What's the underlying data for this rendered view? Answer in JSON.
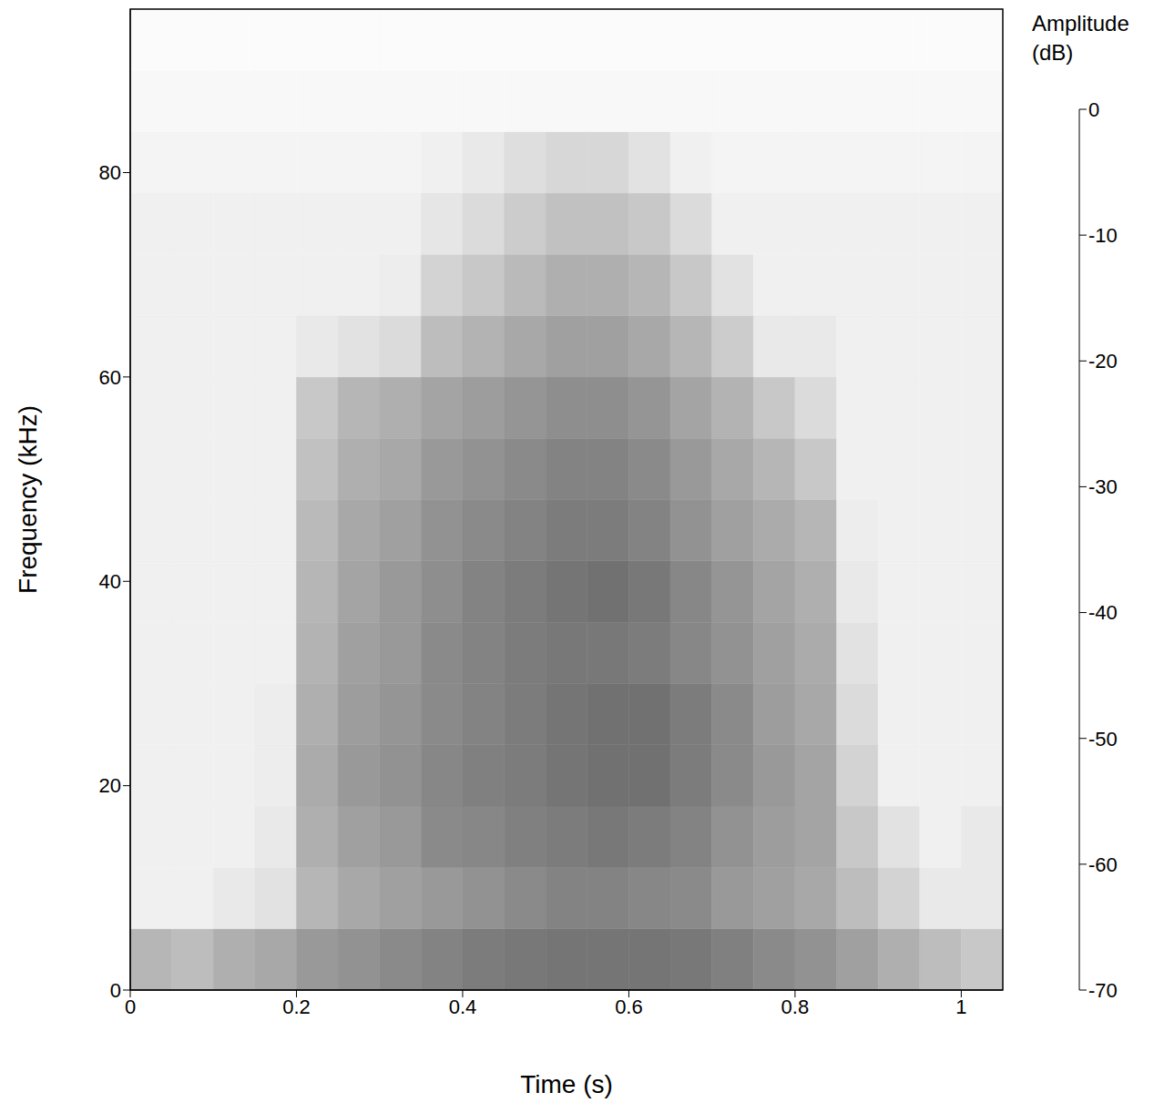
{
  "chart_data": {
    "type": "heatmap",
    "x_label": "Time (s)",
    "y_label": "Frequency (kHz)",
    "xlim": [
      0,
      1.05
    ],
    "xticks": [
      0,
      0.2,
      0.4,
      0.6,
      0.8,
      1
    ],
    "ylim": [
      0,
      96
    ],
    "yticks": [
      0,
      20,
      40,
      60,
      80
    ],
    "x_bins": [
      0,
      0.05,
      0.1,
      0.15,
      0.2,
      0.25,
      0.3,
      0.35,
      0.4,
      0.45,
      0.5,
      0.55,
      0.6,
      0.65,
      0.7,
      0.75,
      0.8,
      0.85,
      0.9,
      0.95,
      1,
      1.05
    ],
    "y_bins": [
      0,
      6,
      12,
      18,
      24,
      30,
      36,
      42,
      48,
      54,
      60,
      66,
      72,
      78,
      84,
      90,
      96
    ],
    "cells": [
      [
        -50,
        -52,
        -48,
        -46,
        -42,
        -40,
        -38,
        -36,
        -34,
        -33,
        -32,
        -32,
        -32,
        -33,
        -35,
        -38,
        -40,
        -44,
        -48,
        -52,
        -55
      ],
      [
        -66,
        -66,
        -64,
        -62,
        -50,
        -46,
        -44,
        -42,
        -40,
        -38,
        -36,
        -36,
        -37,
        -38,
        -42,
        -44,
        -46,
        -52,
        -58,
        -64,
        -64
      ],
      [
        -66,
        -66,
        -66,
        -64,
        -48,
        -44,
        -42,
        -38,
        -37,
        -35,
        -34,
        -33,
        -34,
        -36,
        -40,
        -43,
        -45,
        -55,
        -62,
        -66,
        -64
      ],
      [
        -66,
        -66,
        -66,
        -65,
        -47,
        -42,
        -40,
        -37,
        -35,
        -34,
        -32,
        -31,
        -31,
        -34,
        -38,
        -42,
        -45,
        -58,
        -66,
        -66,
        -66
      ],
      [
        -66,
        -66,
        -66,
        -65,
        -48,
        -43,
        -41,
        -38,
        -36,
        -34,
        -32,
        -31,
        -31,
        -34,
        -38,
        -43,
        -46,
        -60,
        -66,
        -66,
        -66
      ],
      [
        -66,
        -66,
        -66,
        -66,
        -49,
        -44,
        -42,
        -38,
        -36,
        -34,
        -33,
        -33,
        -34,
        -37,
        -40,
        -44,
        -47,
        -62,
        -66,
        -66,
        -66
      ],
      [
        -66,
        -66,
        -66,
        -66,
        -50,
        -45,
        -42,
        -39,
        -36,
        -34,
        -32,
        -31,
        -33,
        -37,
        -41,
        -45,
        -48,
        -64,
        -66,
        -66,
        -66
      ],
      [
        -66,
        -66,
        -66,
        -66,
        -51,
        -46,
        -44,
        -40,
        -38,
        -36,
        -34,
        -34,
        -36,
        -40,
        -44,
        -47,
        -50,
        -65,
        -66,
        -66,
        -66
      ],
      [
        -66,
        -66,
        -66,
        -66,
        -53,
        -48,
        -46,
        -42,
        -40,
        -38,
        -36,
        -36,
        -38,
        -42,
        -46,
        -50,
        -55,
        -66,
        -66,
        -66,
        -66
      ],
      [
        -66,
        -66,
        -66,
        -66,
        -55,
        -50,
        -48,
        -45,
        -43,
        -41,
        -39,
        -39,
        -41,
        -45,
        -49,
        -55,
        -60,
        -66,
        -66,
        -66,
        -66
      ],
      [
        -66,
        -66,
        -66,
        -66,
        -64,
        -62,
        -60,
        -52,
        -49,
        -46,
        -44,
        -44,
        -46,
        -50,
        -56,
        -64,
        -64,
        -66,
        -66,
        -66,
        -66
      ],
      [
        -66,
        -66,
        -66,
        -66,
        -66,
        -66,
        -65,
        -58,
        -55,
        -51,
        -48,
        -48,
        -50,
        -55,
        -62,
        -66,
        -66,
        -66,
        -66,
        -66,
        -66
      ],
      [
        -66,
        -66,
        -66,
        -66,
        -66,
        -66,
        -66,
        -63,
        -60,
        -56,
        -53,
        -53,
        -55,
        -60,
        -66,
        -66,
        -66,
        -66,
        -66,
        -66,
        -66
      ],
      [
        -67,
        -67,
        -67,
        -67,
        -67,
        -67,
        -67,
        -66,
        -64,
        -61,
        -59,
        -59,
        -62,
        -66,
        -67,
        -67,
        -67,
        -67,
        -67,
        -67,
        -67
      ],
      [
        -68,
        -68,
        -68,
        -68,
        -68,
        -68,
        -68,
        -68,
        -68,
        -68,
        -68,
        -68,
        -68,
        -68,
        -68,
        -68,
        -68,
        -68,
        -68,
        -68,
        -68
      ],
      [
        -69,
        -69,
        -69,
        -69,
        -69,
        -69,
        -69,
        -69,
        -69,
        -69,
        -69,
        -69,
        -69,
        -69,
        -69,
        -69,
        -69,
        -69,
        -69,
        -69,
        -69
      ]
    ],
    "colorbar_title": "Amplitude (dB)",
    "colorbar_range": [
      -70,
      0
    ],
    "colorbar_ticks": [
      0,
      -10,
      -20,
      -30,
      -40,
      -50,
      -60,
      -70
    ]
  }
}
